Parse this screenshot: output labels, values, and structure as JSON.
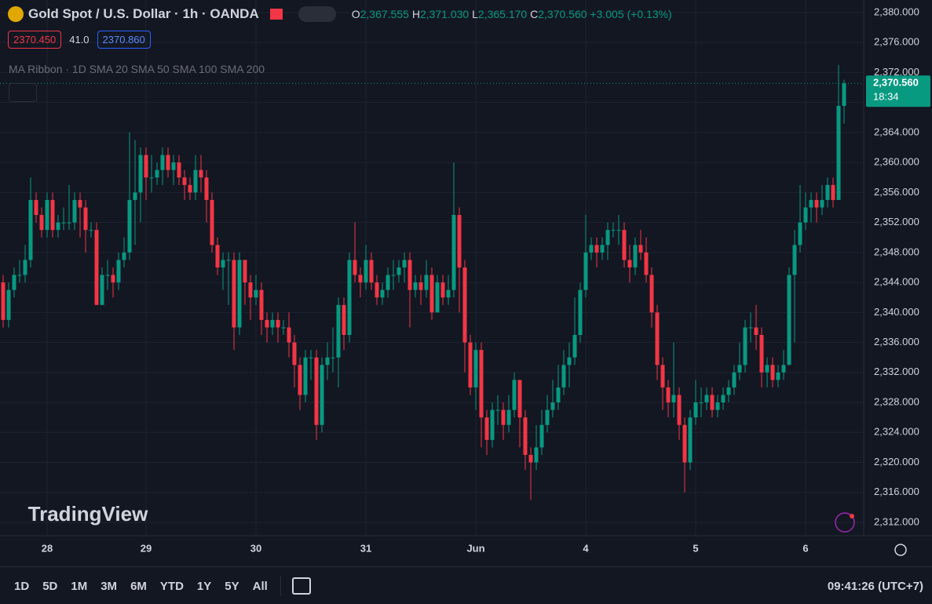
{
  "chart_data": {
    "type": "candlestick",
    "title": "Gold Spot / U.S. Dollar · 1h · OANDA",
    "legend": {
      "o_key": "O",
      "o": "2,367.555",
      "h_key": "H",
      "h": "2,371.030",
      "l_key": "L",
      "l": "2,365.170",
      "c_key": "C",
      "c": "2,370.560",
      "change": "+3.005 (+0.13%)"
    },
    "bid": "2370.450",
    "spread": "41.0",
    "ask": "2370.860",
    "indicator": "MA Ribbon · 1D SMA 20 SMA 50 SMA 100 SMA 200",
    "watermark": "TradingView",
    "last_price_label": "2,370.560",
    "countdown": "18:34",
    "up_color": "#089981",
    "down_color": "#f23645",
    "grid": true,
    "ylim": [
      2310.22,
      2381.67
    ],
    "yticks": [
      {
        "value": 2312,
        "label": "2,312.000"
      },
      {
        "value": 2316,
        "label": "2,316.000"
      },
      {
        "value": 2320,
        "label": "2,320.000"
      },
      {
        "value": 2324,
        "label": "2,324.000"
      },
      {
        "value": 2328,
        "label": "2,328.000"
      },
      {
        "value": 2332,
        "label": "2,332.000"
      },
      {
        "value": 2336,
        "label": "2,336.000"
      },
      {
        "value": 2340,
        "label": "2,340.000"
      },
      {
        "value": 2344,
        "label": "2,344.000"
      },
      {
        "value": 2348,
        "label": "2,348.000"
      },
      {
        "value": 2352,
        "label": "2,352.000"
      },
      {
        "value": 2356,
        "label": "2,356.000"
      },
      {
        "value": 2360,
        "label": "2,360.000"
      },
      {
        "value": 2364,
        "label": "2,364.000"
      },
      {
        "value": 2368,
        "label": "2,368.000"
      },
      {
        "value": 2372,
        "label": "2,372.000"
      },
      {
        "value": 2376,
        "label": "2,376.000"
      },
      {
        "value": 2380,
        "label": "2,380.000"
      }
    ],
    "categories": [
      null,
      null,
      null,
      null,
      null,
      null,
      null,
      null,
      "28",
      null,
      null,
      null,
      null,
      null,
      null,
      null,
      null,
      null,
      null,
      null,
      null,
      null,
      null,
      null,
      null,
      null,
      "29",
      null,
      null,
      null,
      null,
      null,
      null,
      null,
      null,
      null,
      null,
      null,
      null,
      null,
      null,
      null,
      null,
      null,
      null,
      null,
      "30",
      null,
      null,
      null,
      null,
      null,
      null,
      null,
      null,
      null,
      null,
      null,
      null,
      null,
      null,
      null,
      null,
      null,
      null,
      null,
      "31",
      null,
      null,
      null,
      null,
      null,
      null,
      null,
      null,
      null,
      null,
      null,
      null,
      null,
      null,
      null,
      null,
      null,
      null,
      null,
      "Jun",
      null,
      null,
      null,
      null,
      null,
      null,
      null,
      null,
      null,
      null,
      null,
      null,
      null,
      null,
      null,
      null,
      null,
      null,
      null,
      "4",
      null,
      null,
      null,
      null,
      null,
      null,
      null,
      null,
      null,
      null,
      null,
      null,
      null,
      null,
      null,
      null,
      null,
      null,
      null,
      "5",
      null,
      null,
      null,
      null,
      null,
      null,
      null,
      null,
      null,
      null,
      null,
      null,
      null,
      null,
      null,
      null,
      null,
      null,
      null,
      "6",
      null,
      null,
      null,
      null,
      null,
      null,
      null
    ],
    "open": [
      2344,
      2339,
      2343,
      2345,
      2345,
      2347,
      2355,
      2353,
      2351,
      2355,
      2351,
      2352,
      2352,
      2352,
      2355,
      2354,
      2351,
      2351,
      2341,
      2345,
      2345,
      2344,
      2347,
      2348,
      2355,
      2356,
      2361,
      2358,
      2358,
      2359,
      2361,
      2359,
      2360,
      2358,
      2357,
      2356,
      2359,
      2358,
      2355,
      2349,
      2346,
      2347,
      2347,
      2338,
      2347,
      2344,
      2342,
      2343,
      2339,
      2338,
      2339,
      2338,
      2338,
      2336,
      2333,
      2329,
      2334,
      2334,
      2325,
      2333,
      2334,
      2334,
      2341,
      2337,
      2347,
      2345,
      2344,
      2347,
      2344,
      2342,
      2343,
      2345,
      2345,
      2346,
      2347,
      2343,
      2344,
      2343,
      2345,
      2340,
      2344,
      2342,
      2343,
      2353,
      2346,
      2336,
      2330,
      2335,
      2326,
      2323,
      2327,
      2327,
      2325,
      2327,
      2331,
      2326,
      2321,
      2320,
      2322,
      2325,
      2327,
      2328,
      2330,
      2333,
      2334,
      2337,
      2343,
      2348,
      2349,
      2348,
      2349,
      2351,
      2351,
      2351,
      2347,
      2346,
      2349,
      2348,
      2345,
      2340,
      2333,
      2330,
      2328,
      2329,
      2325,
      2320,
      2326,
      2328,
      2328,
      2329,
      2327,
      2328,
      2329,
      2330,
      2332,
      2333,
      2338,
      2338,
      2337,
      2332,
      2333,
      2331,
      2332,
      2333,
      2345,
      2349,
      2352,
      2354,
      2355,
      2354,
      2355,
      2357,
      2355,
      2367.555
    ],
    "high": [
      2345,
      2344,
      2346,
      2347,
      2349,
      2358,
      2356,
      2354,
      2356,
      2356,
      2353,
      2354,
      2357,
      2356,
      2356,
      2355,
      2352,
      2352,
      2346,
      2347,
      2346,
      2348,
      2350,
      2364,
      2363,
      2362,
      2362,
      2361,
      2360,
      2362,
      2362,
      2361,
      2361,
      2359,
      2358,
      2361,
      2361,
      2359,
      2356,
      2350,
      2348,
      2348,
      2348,
      2348,
      2347,
      2345,
      2345,
      2344,
      2340,
      2340,
      2340,
      2339,
      2340,
      2337,
      2334,
      2335,
      2335,
      2335,
      2334,
      2336,
      2338,
      2342,
      2342,
      2348,
      2352,
      2346,
      2349,
      2348,
      2345,
      2344,
      2346,
      2347,
      2347,
      2348,
      2348,
      2345,
      2345,
      2347,
      2346,
      2345,
      2345,
      2345,
      2360,
      2354,
      2347,
      2337,
      2336,
      2336,
      2327,
      2328,
      2329,
      2328,
      2329,
      2332,
      2331,
      2327,
      2322,
      2325,
      2327,
      2329,
      2331,
      2333,
      2335,
      2336,
      2342,
      2344,
      2353,
      2350,
      2350,
      2350,
      2352,
      2352,
      2353,
      2352,
      2349,
      2350,
      2351,
      2350,
      2346,
      2341,
      2334,
      2331,
      2336,
      2330,
      2326,
      2327,
      2331,
      2330,
      2330,
      2330,
      2329,
      2330,
      2331,
      2333,
      2336,
      2339,
      2340,
      2341,
      2338,
      2334,
      2334,
      2333,
      2335,
      2346,
      2351,
      2357,
      2356,
      2356,
      2356,
      2357,
      2358,
      2358,
      2373,
      2371.03
    ],
    "low": [
      2338,
      2338,
      2342,
      2344,
      2344,
      2346,
      2352,
      2350,
      2350,
      2350,
      2350,
      2351,
      2351,
      2351,
      2350,
      2348,
      2350,
      2341,
      2341,
      2343,
      2342,
      2343,
      2346,
      2347,
      2349,
      2352,
      2355,
      2356,
      2357,
      2357,
      2358,
      2357,
      2357,
      2355,
      2355,
      2355,
      2356,
      2352,
      2348,
      2345,
      2343,
      2341,
      2335,
      2337,
      2341,
      2339,
      2341,
      2337,
      2336,
      2337,
      2336,
      2337,
      2334,
      2330,
      2327,
      2328,
      2331,
      2323,
      2324,
      2331,
      2332,
      2330,
      2335,
      2336,
      2344,
      2342,
      2343,
      2343,
      2341,
      2341,
      2342,
      2343,
      2344,
      2344,
      2338,
      2342,
      2341,
      2342,
      2339,
      2340,
      2341,
      2341,
      2342,
      2340,
      2332,
      2329,
      2327,
      2322,
      2321,
      2322,
      2325,
      2323,
      2324,
      2326,
      2322,
      2319,
      2315,
      2319,
      2321,
      2324,
      2326,
      2327,
      2329,
      2330,
      2333,
      2336,
      2342,
      2347,
      2346,
      2347,
      2347,
      2350,
      2349,
      2346,
      2344,
      2345,
      2347,
      2344,
      2338,
      2331,
      2327,
      2326,
      2326,
      2323,
      2316,
      2319,
      2325,
      2326,
      2327,
      2326,
      2326,
      2327,
      2328,
      2329,
      2331,
      2332,
      2336,
      2335,
      2330,
      2330,
      2330,
      2330,
      2331,
      2333,
      2336,
      2348,
      2351,
      2352,
      2352,
      2353,
      2354,
      2354,
      2355,
      2365.17
    ],
    "close": [
      2339,
      2343,
      2345,
      2345,
      2347,
      2355,
      2353,
      2351,
      2355,
      2351,
      2352,
      2352,
      2352,
      2355,
      2354,
      2351,
      2351,
      2341,
      2345,
      2345,
      2344,
      2347,
      2348,
      2355,
      2356,
      2361,
      2358,
      2358,
      2359,
      2361,
      2359,
      2360,
      2358,
      2357,
      2356,
      2359,
      2358,
      2355,
      2349,
      2346,
      2347,
      2347,
      2338,
      2347,
      2344,
      2342,
      2343,
      2339,
      2338,
      2339,
      2338,
      2338,
      2336,
      2333,
      2329,
      2334,
      2334,
      2325,
      2333,
      2334,
      2334,
      2341,
      2337,
      2347,
      2345,
      2344,
      2347,
      2344,
      2342,
      2343,
      2345,
      2345,
      2346,
      2347,
      2343,
      2344,
      2343,
      2345,
      2340,
      2344,
      2342,
      2343,
      2353,
      2346,
      2336,
      2330,
      2335,
      2326,
      2323,
      2327,
      2327,
      2325,
      2327,
      2331,
      2326,
      2321,
      2320,
      2322,
      2325,
      2327,
      2328,
      2330,
      2333,
      2334,
      2337,
      2343,
      2348,
      2349,
      2348,
      2349,
      2351,
      2351,
      2351,
      2347,
      2346,
      2349,
      2348,
      2345,
      2340,
      2333,
      2330,
      2328,
      2329,
      2325,
      2320,
      2326,
      2328,
      2328,
      2329,
      2327,
      2328,
      2329,
      2330,
      2332,
      2333,
      2338,
      2338,
      2337,
      2332,
      2333,
      2331,
      2332,
      2333,
      2345,
      2349,
      2352,
      2354,
      2355,
      2354,
      2355,
      2357,
      2355,
      2367.555,
      2370.56
    ]
  },
  "toolbar": {
    "ranges": [
      "1D",
      "5D",
      "1M",
      "3M",
      "6M",
      "YTD",
      "1Y",
      "5Y",
      "All"
    ],
    "clock": "09:41:26 (UTC+7)"
  }
}
